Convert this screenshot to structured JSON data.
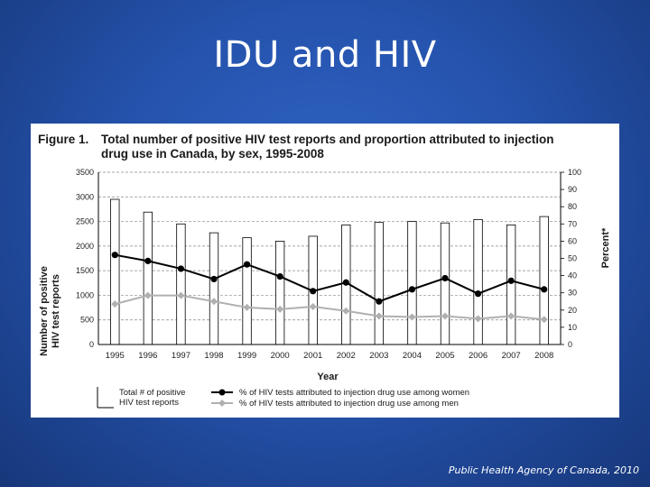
{
  "slide": {
    "title": "IDU and HIV",
    "source": "Public Health Agency of Canada, 2010"
  },
  "figure": {
    "number_label": "Figure 1.",
    "title_line1": "Total number of positive HIV test reports and proportion attributed to injection",
    "title_line2": "drug use in Canada, by sex, 1995-2008"
  },
  "chart_data": {
    "type": "bar",
    "title": "Total number of positive HIV test reports and proportion attributed to injection drug use in Canada, by sex, 1995-2008",
    "xlabel": "Year",
    "ylabel_left_line1": "Number of positive",
    "ylabel_left_line2": "HIV test reports",
    "ylabel_right": "Percent*",
    "categories": [
      "1995",
      "1996",
      "1997",
      "1998",
      "1999",
      "2000",
      "2001",
      "2002",
      "2003",
      "2004",
      "2005",
      "2006",
      "2007",
      "2008"
    ],
    "ylim_left": [
      0,
      3500
    ],
    "yticks_left": [
      0,
      500,
      1000,
      1500,
      2000,
      2500,
      3000,
      3500
    ],
    "ylim_right": [
      0,
      100
    ],
    "yticks_right": [
      0,
      10,
      20,
      30,
      40,
      50,
      60,
      70,
      80,
      90,
      100
    ],
    "series": [
      {
        "name": "Total # of positive HIV test reports",
        "legend_line1": "Total # of positive",
        "legend_line2": "HIV test reports",
        "kind": "bar",
        "axis": "left",
        "values": [
          2950,
          2690,
          2450,
          2270,
          2170,
          2100,
          2200,
          2430,
          2480,
          2500,
          2470,
          2540,
          2430,
          2600
        ]
      },
      {
        "name": "% of HIV tests attributed to injection drug use among women",
        "kind": "line",
        "axis": "right",
        "color": "#000000",
        "values": [
          52,
          48.5,
          44,
          38,
          46.5,
          39.5,
          31,
          36,
          25,
          32,
          38.5,
          29.5,
          37,
          32
        ]
      },
      {
        "name": "% of HIV tests attributed to injection drug use among men",
        "kind": "line",
        "axis": "right",
        "color": "#b0b0b0",
        "values": [
          23.5,
          28.5,
          28.5,
          25,
          21.5,
          20.5,
          22,
          19.5,
          16.5,
          16,
          16.5,
          15,
          16.5,
          14.5
        ]
      }
    ],
    "grid": "horizontal-dashed"
  }
}
